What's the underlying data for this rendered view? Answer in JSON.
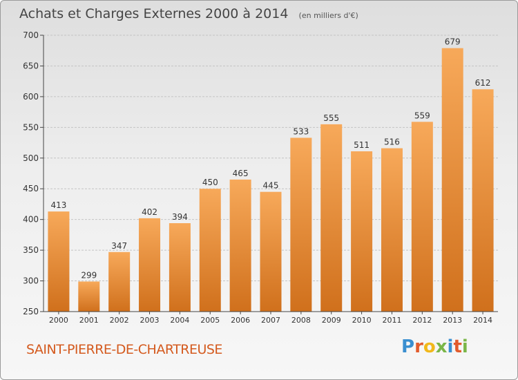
{
  "title": "Achats et Charges Externes 2000 à 2014",
  "subtitle": "(en milliers d'€)",
  "commune": "SAINT-PIERRE-DE-CHARTREUSE",
  "logo": {
    "letters": [
      "P",
      "r",
      "o",
      "x",
      "i",
      "t",
      "i"
    ],
    "colors": [
      "#3a8fd0",
      "#e25b2c",
      "#f1b81b",
      "#7ab648",
      "#3a8fd0",
      "#e25b2c",
      "#7ab648"
    ]
  },
  "colors": {
    "bar_top": "#f7a95a",
    "bar_bottom": "#d0701c",
    "title": "#444444",
    "commune": "#d45a1e"
  },
  "chart_data": {
    "type": "bar",
    "categories": [
      "2000",
      "2001",
      "2002",
      "2003",
      "2004",
      "2005",
      "2006",
      "2007",
      "2008",
      "2009",
      "2010",
      "2011",
      "2012",
      "2013",
      "2014"
    ],
    "values": [
      413,
      299,
      347,
      402,
      394,
      450,
      465,
      445,
      533,
      555,
      511,
      516,
      559,
      679,
      612
    ],
    "ylim": [
      250,
      700
    ],
    "yticks": [
      250,
      300,
      350,
      400,
      450,
      500,
      550,
      600,
      650,
      700
    ],
    "grid": true
  }
}
